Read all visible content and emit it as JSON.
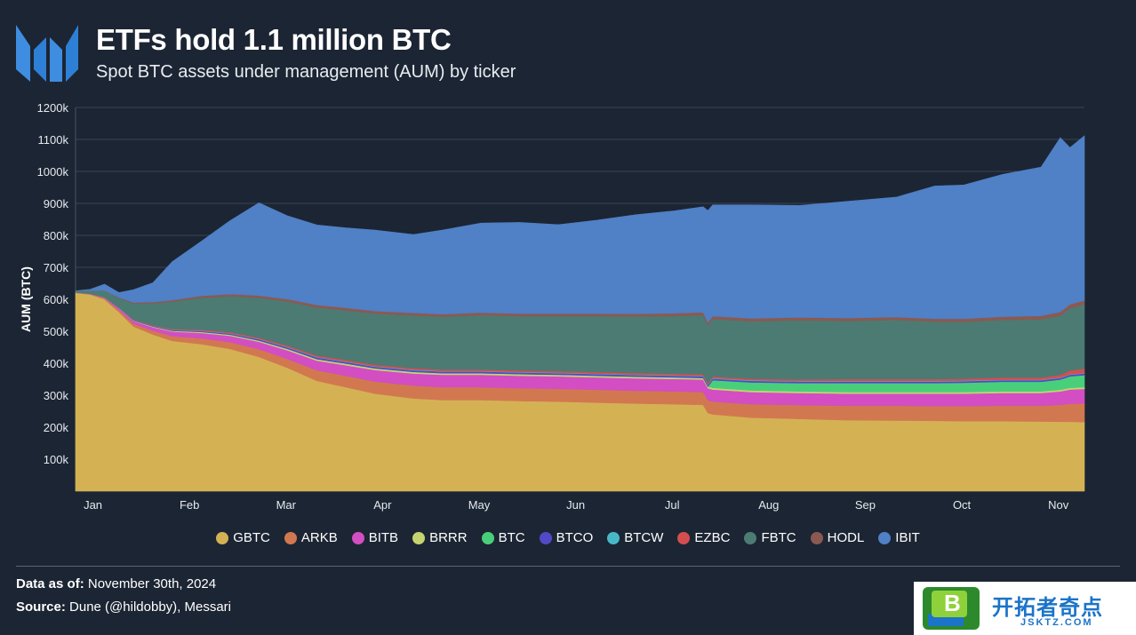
{
  "header": {
    "title": "ETFs hold 1.1 million BTC",
    "subtitle": "Spot BTC assets under management (AUM) by ticker"
  },
  "footer": {
    "data_label": "Data as of:",
    "data_value": "November 30th, 2024",
    "source_label": "Source:",
    "source_value": "Dune (@hildobby), Messari"
  },
  "watermark": {
    "badge_letter": "B",
    "text": "开拓者奇点",
    "sub": "JSKTZ.COM"
  },
  "chart_data": {
    "type": "area",
    "stacked": true,
    "title": "ETFs hold 1.1 million BTC",
    "subtitle": "Spot BTC assets under management (AUM) by ticker",
    "xlabel": "",
    "ylabel": "AUM (BTC)",
    "ylim": [
      0,
      1200000
    ],
    "yticks": [
      100000,
      200000,
      300000,
      400000,
      500000,
      600000,
      700000,
      800000,
      900000,
      1000000,
      1100000,
      1200000
    ],
    "ytick_labels": [
      "100k",
      "200k",
      "300k",
      "400k",
      "500k",
      "600k",
      "700k",
      "800k",
      "900k",
      "1000k",
      "1100k",
      "1200k"
    ],
    "xlim": [
      0,
      10.45
    ],
    "month_ticks": [
      {
        "x": 0.18,
        "label": "Jan"
      },
      {
        "x": 1.18,
        "label": "Feb"
      },
      {
        "x": 2.18,
        "label": "Mar"
      },
      {
        "x": 3.18,
        "label": "Apr"
      },
      {
        "x": 4.18,
        "label": "May"
      },
      {
        "x": 5.18,
        "label": "Jun"
      },
      {
        "x": 6.18,
        "label": "Jul"
      },
      {
        "x": 7.18,
        "label": "Aug"
      },
      {
        "x": 8.18,
        "label": "Sep"
      },
      {
        "x": 9.18,
        "label": "Oct"
      },
      {
        "x": 10.18,
        "label": "Nov"
      }
    ],
    "x": [
      0,
      0.15,
      0.3,
      0.45,
      0.6,
      0.8,
      1.0,
      1.3,
      1.6,
      1.9,
      2.2,
      2.5,
      2.8,
      3.1,
      3.5,
      3.8,
      4.2,
      4.6,
      5.0,
      5.4,
      5.8,
      6.2,
      6.5,
      6.55,
      6.6,
      7.0,
      7.5,
      8.0,
      8.5,
      8.9,
      9.2,
      9.6,
      10.0,
      10.2,
      10.3,
      10.45
    ],
    "series": [
      {
        "name": "GBTC",
        "color": "#d4b254",
        "values": [
          620000,
          615000,
          600000,
          560000,
          515000,
          490000,
          470000,
          460000,
          445000,
          420000,
          385000,
          345000,
          325000,
          305000,
          290000,
          285000,
          285000,
          282000,
          280000,
          277000,
          274000,
          272000,
          270000,
          244000,
          240000,
          230000,
          226000,
          222000,
          221000,
          220000,
          219000,
          219000,
          218000,
          217000,
          217000,
          216000
        ]
      },
      {
        "name": "ARKB",
        "color": "#d27850",
        "values": [
          1000,
          1500,
          3000,
          6000,
          9000,
          12000,
          15000,
          18000,
          21000,
          24000,
          28000,
          33000,
          36000,
          38000,
          40000,
          40000,
          40000,
          40000,
          40000,
          40000,
          40000,
          40000,
          40000,
          40000,
          40000,
          42000,
          43000,
          45000,
          46000,
          46000,
          47000,
          48000,
          49000,
          53000,
          56000,
          58000
        ]
      },
      {
        "name": "BITB",
        "color": "#d24ec2",
        "values": [
          500,
          1000,
          2000,
          5000,
          8000,
          11000,
          14000,
          17000,
          20000,
          23000,
          27000,
          30000,
          33000,
          36000,
          38000,
          39000,
          39000,
          39000,
          39000,
          39000,
          39000,
          39000,
          39000,
          38000,
          38000,
          38000,
          38000,
          38000,
          38000,
          39000,
          39000,
          40000,
          40000,
          42000,
          45000,
          46000
        ]
      },
      {
        "name": "BRRR",
        "color": "#c6d46f",
        "values": [
          0,
          0,
          500,
          1000,
          1500,
          2000,
          2500,
          3000,
          3500,
          4000,
          4500,
          5000,
          5000,
          5000,
          5000,
          5000,
          5000,
          5000,
          5000,
          5000,
          5000,
          5000,
          5000,
          5000,
          5000,
          5000,
          5000,
          5000,
          5000,
          5000,
          5000,
          5000,
          5000,
          5000,
          5000,
          5000
        ]
      },
      {
        "name": "BTC",
        "color": "#49cf7a",
        "values": [
          0,
          0,
          0,
          0,
          0,
          0,
          0,
          0,
          0,
          0,
          0,
          0,
          0,
          0,
          0,
          0,
          0,
          0,
          0,
          0,
          0,
          0,
          0,
          0,
          24000,
          25000,
          26000,
          28000,
          28000,
          28000,
          29000,
          30000,
          30000,
          32000,
          36000,
          38000
        ]
      },
      {
        "name": "BTCO",
        "color": "#5249c8",
        "values": [
          0,
          0,
          500,
          1000,
          1500,
          2000,
          2500,
          3000,
          3500,
          4000,
          4500,
          5000,
          5000,
          5000,
          5000,
          5000,
          5000,
          5000,
          5000,
          5000,
          5000,
          5000,
          5000,
          5000,
          5000,
          5000,
          5000,
          5000,
          5000,
          5000,
          5000,
          5000,
          5000,
          5000,
          5000,
          5000
        ]
      },
      {
        "name": "BTCW",
        "color": "#49b8c6",
        "values": [
          0,
          0,
          0,
          0,
          500,
          500,
          1000,
          1000,
          1000,
          1000,
          1500,
          1500,
          1500,
          1500,
          1500,
          1500,
          1500,
          1500,
          1500,
          1500,
          1500,
          1500,
          1500,
          1500,
          1500,
          1500,
          1500,
          1500,
          1500,
          1500,
          1500,
          1500,
          1500,
          1500,
          1500,
          1500
        ]
      },
      {
        "name": "EZBC",
        "color": "#d34f4f",
        "values": [
          0,
          0,
          500,
          1000,
          1500,
          2000,
          2500,
          3000,
          3500,
          4000,
          4500,
          5000,
          5000,
          5000,
          5000,
          5000,
          5000,
          5000,
          5000,
          5000,
          5000,
          5000,
          5000,
          5000,
          5000,
          5000,
          5000,
          6000,
          6000,
          6000,
          6000,
          7000,
          7000,
          8000,
          12000,
          14000
        ]
      },
      {
        "name": "FBTC",
        "color": "#4c7b73",
        "values": [
          5000,
          10000,
          20000,
          30000,
          50000,
          68000,
          85000,
          100000,
          112000,
          125000,
          138000,
          150000,
          155000,
          160000,
          165000,
          165000,
          170000,
          170000,
          172000,
          175000,
          177000,
          180000,
          185000,
          180000,
          180000,
          180000,
          185000,
          182000,
          185000,
          180000,
          178000,
          180000,
          182000,
          185000,
          195000,
          200000
        ]
      },
      {
        "name": "HODL",
        "color": "#8a5a52",
        "values": [
          0,
          500,
          1000,
          2000,
          3000,
          4000,
          5000,
          6000,
          6500,
          7000,
          7500,
          8000,
          8000,
          8000,
          8000,
          8000,
          8000,
          8000,
          8000,
          8000,
          8000,
          9000,
          9000,
          9000,
          9000,
          9000,
          9000,
          9000,
          9000,
          9000,
          10000,
          10000,
          11000,
          12000,
          12000,
          13000
        ]
      },
      {
        "name": "IBIT",
        "color": "#5080c6",
        "values": [
          0,
          3000,
          20000,
          15000,
          40000,
          60000,
          120000,
          170000,
          230000,
          290000,
          260000,
          250000,
          250000,
          253000,
          245000,
          263000,
          280000,
          285000,
          278000,
          292000,
          310000,
          320000,
          330000,
          350000,
          348000,
          355000,
          350000,
          365000,
          375000,
          415000,
          418000,
          445000,
          465000,
          545000,
          490000,
          515000
        ]
      }
    ]
  }
}
